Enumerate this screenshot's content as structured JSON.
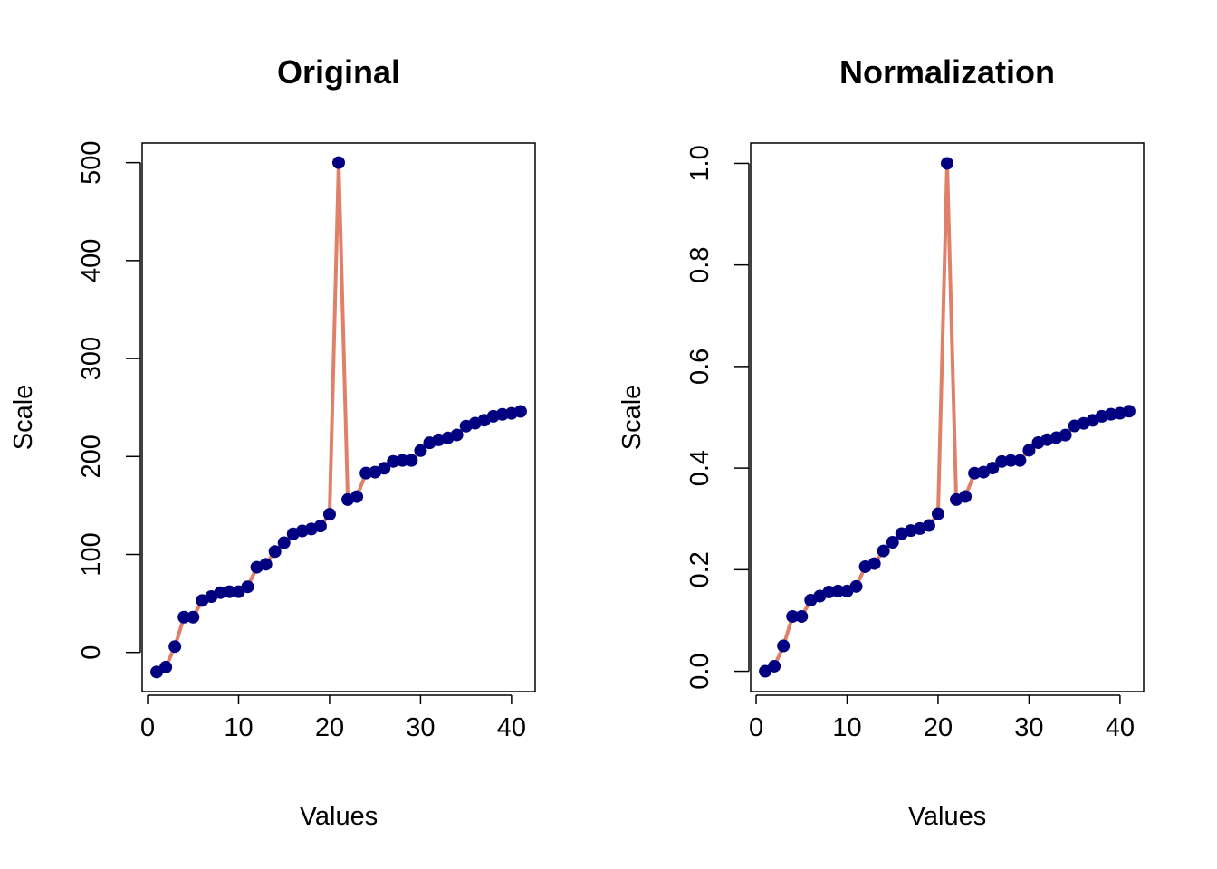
{
  "colors": {
    "line": "#E08068",
    "point": "#000080",
    "axis": "#000000",
    "background": "#ffffff"
  },
  "chart_data": [
    {
      "type": "line",
      "title": "Original",
      "xlabel": "Values",
      "ylabel": "Scale",
      "xlim": [
        -0.6,
        42.6
      ],
      "ylim": [
        -40,
        520
      ],
      "xticks": [
        0,
        10,
        20,
        30,
        40
      ],
      "xtick_labels": [
        "0",
        "10",
        "20",
        "30",
        "40"
      ],
      "yticks": [
        0,
        100,
        200,
        300,
        400,
        500
      ],
      "ytick_labels": [
        "0",
        "100",
        "200",
        "300",
        "400",
        "500"
      ],
      "grid": false,
      "legend": "none",
      "series": [
        {
          "markers": true,
          "x": [
            1,
            2,
            3,
            4,
            5,
            6,
            7,
            8,
            9,
            10,
            11,
            12,
            13,
            14,
            15,
            16,
            17,
            18,
            19,
            20,
            21,
            22,
            23,
            24,
            25,
            26,
            27,
            28,
            29,
            30,
            31,
            32,
            33,
            34,
            35,
            36,
            37,
            38,
            39,
            40,
            41
          ],
          "y": [
            -20,
            -15,
            6,
            36,
            36,
            53,
            57,
            61,
            62,
            62,
            67,
            87,
            90,
            103,
            112,
            121,
            124,
            126,
            129,
            141,
            500,
            156,
            159,
            183,
            184,
            188,
            195,
            196,
            196,
            206,
            214,
            217,
            219,
            222,
            231,
            234,
            237,
            241,
            243,
            244,
            246
          ]
        }
      ]
    },
    {
      "type": "line",
      "title": "Normalization",
      "xlabel": "Values",
      "ylabel": "Scale",
      "xlim": [
        -0.6,
        42.6
      ],
      "ylim": [
        -0.04,
        1.04
      ],
      "xticks": [
        0,
        10,
        20,
        30,
        40
      ],
      "xtick_labels": [
        "0",
        "10",
        "20",
        "30",
        "40"
      ],
      "yticks": [
        0,
        0.2,
        0.4,
        0.6,
        0.8,
        1.0
      ],
      "ytick_labels": [
        "0.0",
        "0.2",
        "0.4",
        "0.6",
        "0.8",
        "1.0"
      ],
      "grid": false,
      "legend": "none",
      "series": [
        {
          "markers": true,
          "x": [
            1,
            2,
            3,
            4,
            5,
            6,
            7,
            8,
            9,
            10,
            11,
            12,
            13,
            14,
            15,
            16,
            17,
            18,
            19,
            20,
            21,
            22,
            23,
            24,
            25,
            26,
            27,
            28,
            29,
            30,
            31,
            32,
            33,
            34,
            35,
            36,
            37,
            38,
            39,
            40,
            41
          ],
          "y": [
            0.0,
            0.01,
            0.05,
            0.108,
            0.108,
            0.14,
            0.148,
            0.156,
            0.158,
            0.158,
            0.167,
            0.206,
            0.212,
            0.237,
            0.254,
            0.271,
            0.277,
            0.281,
            0.287,
            0.31,
            1.0,
            0.338,
            0.344,
            0.39,
            0.392,
            0.4,
            0.413,
            0.415,
            0.415,
            0.435,
            0.45,
            0.456,
            0.46,
            0.465,
            0.483,
            0.488,
            0.494,
            0.502,
            0.506,
            0.508,
            0.512
          ]
        }
      ]
    }
  ]
}
